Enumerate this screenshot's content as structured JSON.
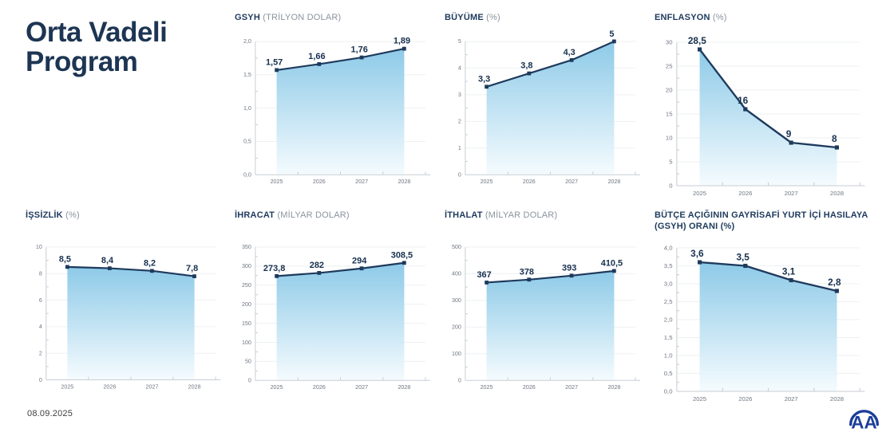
{
  "page": {
    "title_line1": "Orta Vadeli",
    "title_line2": "Program",
    "date": "08.09.2025",
    "logo_text": "AA"
  },
  "colors": {
    "navy_line": "#1e3a5c",
    "title_navy": "#1d3553",
    "subtitle_gray": "#8b939e",
    "tick_gray": "#6f7680",
    "axis_gray": "#c8ced4",
    "grid_gray": "#edf0f2",
    "area_fill_top": "#85c6e6",
    "area_fill_bottom": "#f4fbfe",
    "logo_blue": "#1b3e9c"
  },
  "chart_data": [
    {
      "type": "area",
      "title": "GSYH",
      "subtitle": "(TRİLYON DOLAR)",
      "categories": [
        "2025",
        "2026",
        "2027",
        "2028"
      ],
      "values": [
        1.57,
        1.66,
        1.76,
        1.89
      ],
      "value_labels": [
        "1,57",
        "1,66",
        "1,76",
        "1,89"
      ],
      "ylim": [
        0,
        2
      ],
      "ytick_values": [
        0,
        0.5,
        1,
        1.5,
        2
      ],
      "ytick_labels": [
        "0,0",
        "0,5",
        "1,0",
        "1,5",
        "2,0"
      ],
      "xlabel": "",
      "ylabel": "",
      "grid": true,
      "legend": false
    },
    {
      "type": "area",
      "title": "BÜYÜME",
      "subtitle": "(%)",
      "categories": [
        "2025",
        "2026",
        "2027",
        "2028"
      ],
      "values": [
        3.3,
        3.8,
        4.3,
        5
      ],
      "value_labels": [
        "3,3",
        "3,8",
        "4,3",
        "5"
      ],
      "ylim": [
        0,
        5
      ],
      "ytick_values": [
        0,
        1,
        2,
        3,
        4,
        5
      ],
      "ytick_labels": [
        "0",
        "1",
        "2",
        "3",
        "4",
        "5"
      ],
      "xlabel": "",
      "ylabel": "",
      "grid": true,
      "legend": false
    },
    {
      "type": "area",
      "title": "ENFLASYON",
      "subtitle": "(%)",
      "categories": [
        "2025",
        "2026",
        "2027",
        "2028"
      ],
      "values": [
        28.5,
        16,
        9,
        8
      ],
      "value_labels": [
        "28,5",
        "16",
        "9",
        "8"
      ],
      "ylim": [
        0,
        30
      ],
      "ytick_values": [
        0,
        5,
        10,
        15,
        20,
        25,
        30
      ],
      "ytick_labels": [
        "0",
        "5",
        "10",
        "15",
        "20",
        "25",
        "30"
      ],
      "xlabel": "",
      "ylabel": "",
      "grid": true,
      "legend": false
    },
    {
      "type": "area",
      "title": "İŞSİZLİK",
      "subtitle": "(%)",
      "categories": [
        "2025",
        "2026",
        "2027",
        "2028"
      ],
      "values": [
        8.5,
        8.4,
        8.2,
        7.8
      ],
      "value_labels": [
        "8,5",
        "8,4",
        "8,2",
        "7,8"
      ],
      "ylim": [
        0,
        10
      ],
      "ytick_values": [
        0,
        2,
        4,
        6,
        8,
        10
      ],
      "ytick_labels": [
        "0",
        "2",
        "4",
        "6",
        "8",
        "10"
      ],
      "xlabel": "",
      "ylabel": "",
      "grid": true,
      "legend": false
    },
    {
      "type": "area",
      "title": "İHRACAT",
      "subtitle": "(MİLYAR DOLAR)",
      "categories": [
        "2025",
        "2026",
        "2027",
        "2028"
      ],
      "values": [
        273.8,
        282,
        294,
        308.5
      ],
      "value_labels": [
        "273,8",
        "282",
        "294",
        "308,5"
      ],
      "ylim": [
        0,
        350
      ],
      "ytick_values": [
        0,
        50,
        100,
        150,
        200,
        250,
        300,
        350
      ],
      "ytick_labels": [
        "0",
        "50",
        "100",
        "150",
        "200",
        "250",
        "300",
        "350"
      ],
      "xlabel": "",
      "ylabel": "",
      "grid": true,
      "legend": false
    },
    {
      "type": "area",
      "title": "İTHALAT",
      "subtitle": "(MİLYAR DOLAR)",
      "categories": [
        "2025",
        "2026",
        "2027",
        "2028"
      ],
      "values": [
        367,
        378,
        393,
        410.5
      ],
      "value_labels": [
        "367",
        "378",
        "393",
        "410,5"
      ],
      "ylim": [
        0,
        500
      ],
      "ytick_values": [
        0,
        100,
        200,
        300,
        400,
        500
      ],
      "ytick_labels": [
        "0",
        "100",
        "200",
        "300",
        "400",
        "500"
      ],
      "xlabel": "",
      "ylabel": "",
      "grid": true,
      "legend": false
    },
    {
      "type": "area",
      "title": "BÜTÇE AÇIĞININ GAYRİSAFİ YURT İÇİ HASILAYA (GSYH) ORANI (%)",
      "subtitle": "",
      "categories": [
        "2025",
        "2026",
        "2027",
        "2028"
      ],
      "values": [
        3.6,
        3.5,
        3.1,
        2.8
      ],
      "value_labels": [
        "3,6",
        "3,5",
        "3,1",
        "2,8"
      ],
      "ylim": [
        0,
        4
      ],
      "ytick_values": [
        0,
        0.5,
        1,
        1.5,
        2,
        2.5,
        3,
        3.5,
        4
      ],
      "ytick_labels": [
        "0,0",
        "0,5",
        "1,0",
        "1,5",
        "2,0",
        "2,5",
        "3,0",
        "3,5",
        "4,0"
      ],
      "xlabel": "",
      "ylabel": "",
      "grid": true,
      "legend": false
    }
  ]
}
